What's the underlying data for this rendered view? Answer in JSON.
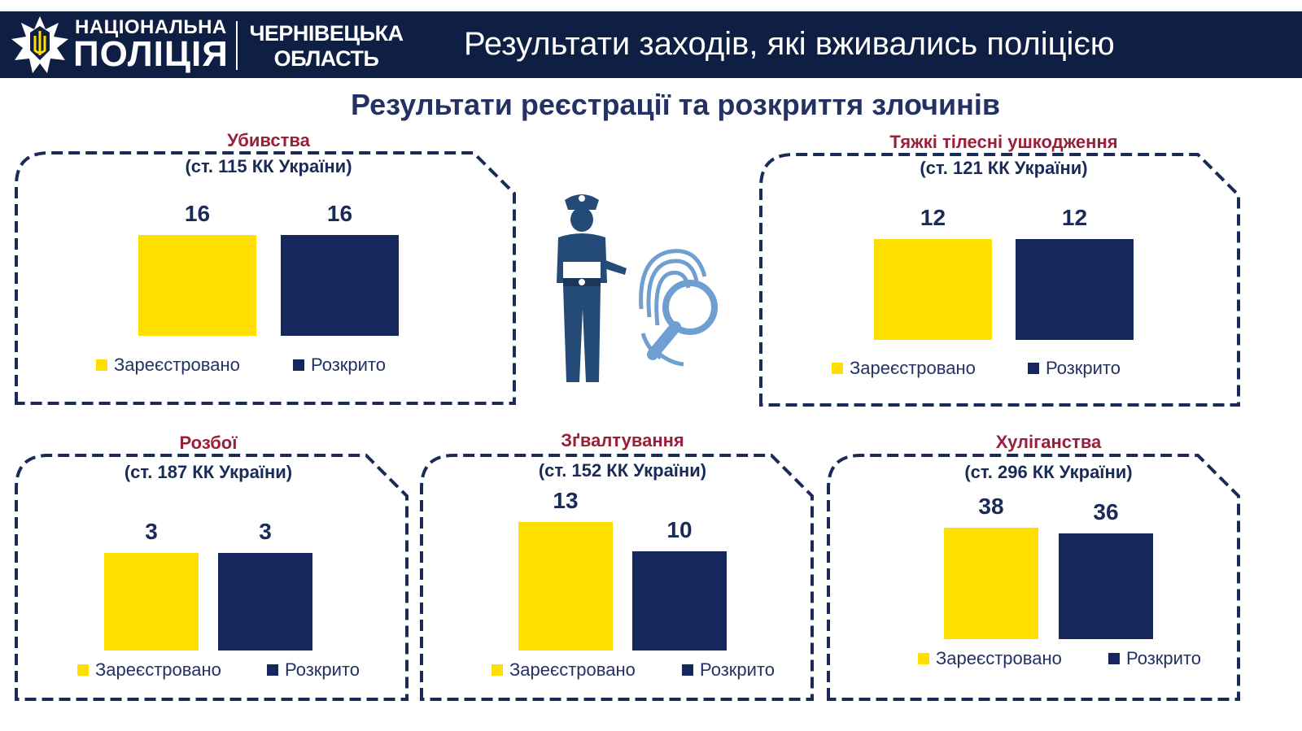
{
  "header": {
    "brand_line1": "НАЦІОНАЛЬНА",
    "brand_line2": "ПОЛІЦІЯ",
    "region_line1": "ЧЕРНІВЕЦЬКА",
    "region_line2": "ОБЛАСТЬ",
    "title": "Результати заходів, які вживались поліцією"
  },
  "page_title": "Результати реєстрації та розкриття злочинів",
  "colors": {
    "registered": "#ffdf00",
    "solved": "#15275d",
    "header_bg": "#0f1e43",
    "panel_title": "#9b1f3a"
  },
  "icons": [
    "police-emblem-icon",
    "police-officer-icon",
    "fingerprint-magnifier-icon"
  ],
  "chart_data": [
    {
      "type": "bar",
      "title": "Убивства",
      "subtitle": "(ст. 115 КК України)",
      "categories": [
        "Зареєстровано",
        "Розкрито"
      ],
      "values": [
        16,
        16
      ],
      "value_labels": [
        "16",
        "16"
      ],
      "legend": [
        "Зареєстровано",
        "Розкрито"
      ],
      "legend_position": "bottom",
      "grid": false
    },
    {
      "type": "bar",
      "title": "Тяжкі тілесні ушкодження",
      "subtitle": "(ст. 121 КК України)",
      "categories": [
        "Зареєстровано",
        "Розкрито"
      ],
      "values": [
        12,
        12
      ],
      "value_labels": [
        "12",
        "12"
      ],
      "legend": [
        "Зареєстровано",
        "Розкрито"
      ],
      "legend_position": "bottom",
      "grid": false
    },
    {
      "type": "bar",
      "title": "Розбої",
      "subtitle": "(ст. 187 КК України)",
      "categories": [
        "Зареєстровано",
        "Розкрито"
      ],
      "values": [
        3,
        3
      ],
      "value_labels": [
        "3",
        "3"
      ],
      "legend": [
        "Зареєстровано",
        "Розкрито"
      ],
      "legend_position": "bottom",
      "grid": false
    },
    {
      "type": "bar",
      "title": "Зґвалтування",
      "subtitle": "(ст. 152 КК України)",
      "categories": [
        "Зареєстровано",
        "Розкрито"
      ],
      "values": [
        13,
        10
      ],
      "value_labels": [
        "13",
        "10"
      ],
      "legend": [
        "Зареєстровано",
        "Розкрито"
      ],
      "legend_position": "bottom",
      "grid": false
    },
    {
      "type": "bar",
      "title": "Хуліганства",
      "subtitle": "(ст. 296 КК України)",
      "categories": [
        "Зареєстровано",
        "Розкрито"
      ],
      "values": [
        38,
        36
      ],
      "value_labels": [
        "38",
        "36"
      ],
      "legend": [
        "Зареєстровано",
        "Розкрито"
      ],
      "legend_position": "bottom",
      "grid": false
    }
  ]
}
